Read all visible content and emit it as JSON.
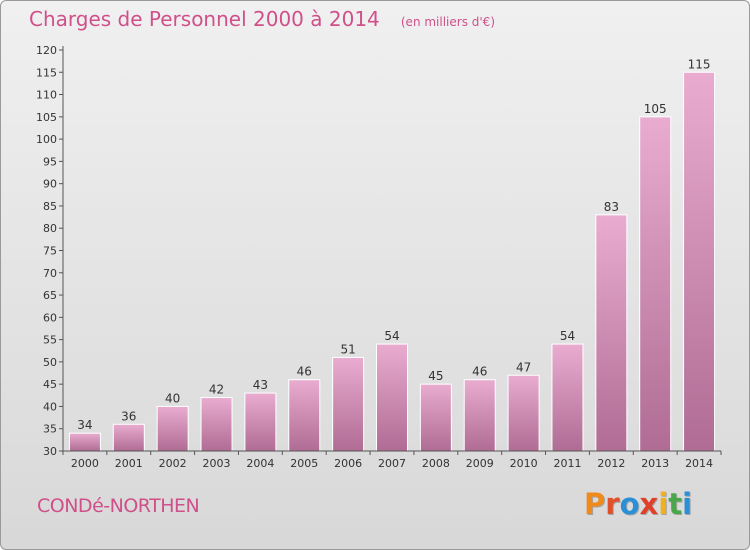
{
  "header": {
    "title": "Charges de Personnel 2000 à 2014",
    "unit": "(en milliers d'€)"
  },
  "footer": {
    "commune": "CONDé-NORTHEN",
    "logo": "Proxiti",
    "logo_colors": [
      "#f08a1c",
      "#e0502a",
      "#2a8fd6",
      "#e0402a",
      "#f0b020",
      "#4aa84a",
      "#2a8fd6"
    ]
  },
  "colors": {
    "bar_top": "#e9acd0",
    "bar_bottom": "#b06c94",
    "text": "#d0508a"
  },
  "chart_data": {
    "type": "bar",
    "categories": [
      "2000",
      "2001",
      "2002",
      "2003",
      "2004",
      "2005",
      "2006",
      "2007",
      "2008",
      "2009",
      "2010",
      "2011",
      "2012",
      "2013",
      "2014"
    ],
    "values": [
      34,
      36,
      40,
      42,
      43,
      46,
      51,
      54,
      45,
      46,
      47,
      54,
      83,
      105,
      115
    ],
    "ylim": [
      30,
      120
    ],
    "yticks": [
      30,
      35,
      40,
      45,
      50,
      55,
      60,
      65,
      70,
      75,
      80,
      85,
      90,
      95,
      100,
      105,
      110,
      115,
      120
    ],
    "grid": false,
    "legend": "none"
  }
}
